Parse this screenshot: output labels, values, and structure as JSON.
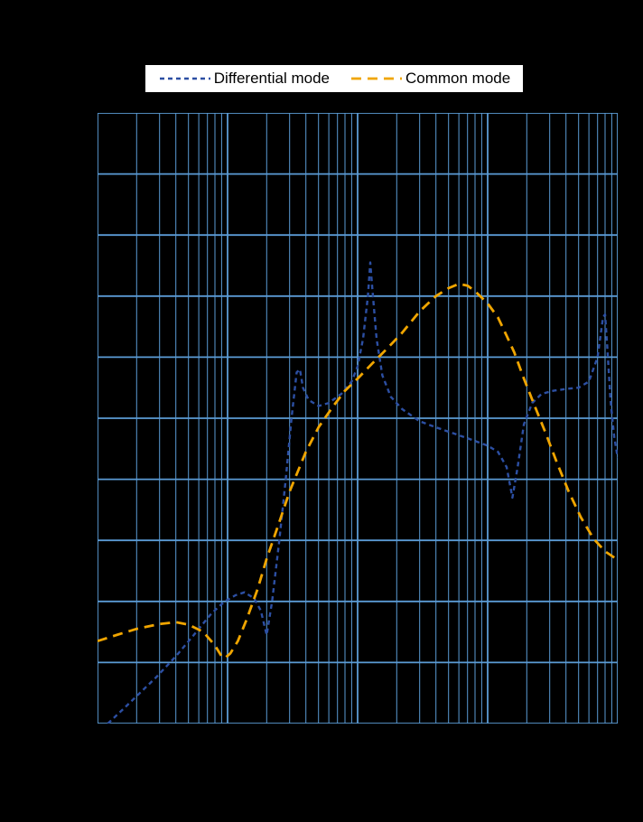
{
  "legend": {
    "background_color": "#ffffff",
    "text_color": "#000000",
    "items": [
      {
        "label": "Differential mode",
        "color": "#2c4fa3",
        "dash": "5 4"
      },
      {
        "label": "Common mode",
        "color": "#f0a500",
        "dash": "11 7"
      }
    ]
  },
  "chart_data": {
    "type": "line",
    "title": "",
    "xlabel": "",
    "ylabel": "",
    "x_scale": "log",
    "xlim": [
      0.01,
      100
    ],
    "ylim": [
      0,
      100
    ],
    "ytick": 10,
    "grid": true,
    "grid_color": "#5b9bd5",
    "background_color": "#000000",
    "legend_position": "top",
    "series": [
      {
        "name": "Differential mode",
        "color": "#2c4fa3",
        "dash": "5 4",
        "points": [
          [
            0.012,
            0
          ],
          [
            0.016,
            2.5
          ],
          [
            0.02,
            4.5
          ],
          [
            0.028,
            7.5
          ],
          [
            0.04,
            11
          ],
          [
            0.055,
            14.5
          ],
          [
            0.075,
            18
          ],
          [
            0.095,
            20
          ],
          [
            0.115,
            21
          ],
          [
            0.135,
            21.5
          ],
          [
            0.16,
            20.5
          ],
          [
            0.18,
            18.5
          ],
          [
            0.2,
            14.5
          ],
          [
            0.22,
            20
          ],
          [
            0.25,
            30
          ],
          [
            0.28,
            40
          ],
          [
            0.31,
            50
          ],
          [
            0.34,
            57.5
          ],
          [
            0.36,
            58
          ],
          [
            0.38,
            55
          ],
          [
            0.42,
            53
          ],
          [
            0.5,
            52
          ],
          [
            0.6,
            52.5
          ],
          [
            0.75,
            54
          ],
          [
            0.9,
            56
          ],
          [
            1.0,
            58.5
          ],
          [
            1.1,
            63
          ],
          [
            1.2,
            70
          ],
          [
            1.25,
            75.5
          ],
          [
            1.3,
            71
          ],
          [
            1.4,
            63
          ],
          [
            1.55,
            57
          ],
          [
            1.8,
            53.5
          ],
          [
            2.2,
            51.5
          ],
          [
            3,
            49.5
          ],
          [
            4,
            48.5
          ],
          [
            5.5,
            47.5
          ],
          [
            7.5,
            46.5
          ],
          [
            10,
            45.5
          ],
          [
            12,
            44.5
          ],
          [
            14,
            42
          ],
          [
            15.5,
            37
          ],
          [
            17,
            42
          ],
          [
            19,
            49
          ],
          [
            22,
            52.5
          ],
          [
            26,
            54
          ],
          [
            32,
            54.5
          ],
          [
            40,
            54.8
          ],
          [
            50,
            55
          ],
          [
            60,
            56
          ],
          [
            70,
            60
          ],
          [
            77,
            66.5
          ],
          [
            80,
            67
          ],
          [
            83,
            62
          ],
          [
            88,
            53
          ],
          [
            94,
            47
          ],
          [
            100,
            43.5
          ]
        ]
      },
      {
        "name": "Common mode",
        "color": "#f0a500",
        "dash": "11 7",
        "points": [
          [
            0.01,
            13.5
          ],
          [
            0.014,
            14.5
          ],
          [
            0.02,
            15.5
          ],
          [
            0.03,
            16.3
          ],
          [
            0.04,
            16.6
          ],
          [
            0.05,
            16.2
          ],
          [
            0.065,
            15
          ],
          [
            0.08,
            12.8
          ],
          [
            0.09,
            11
          ],
          [
            0.095,
            10.7
          ],
          [
            0.105,
            11.5
          ],
          [
            0.12,
            13.5
          ],
          [
            0.14,
            17
          ],
          [
            0.17,
            22
          ],
          [
            0.2,
            27
          ],
          [
            0.25,
            33
          ],
          [
            0.3,
            38
          ],
          [
            0.4,
            44.5
          ],
          [
            0.5,
            48.5
          ],
          [
            0.65,
            52
          ],
          [
            0.8,
            54.5
          ],
          [
            1,
            56.5
          ],
          [
            1.3,
            59
          ],
          [
            1.7,
            61.5
          ],
          [
            2.2,
            64
          ],
          [
            3,
            67.5
          ],
          [
            4,
            70
          ],
          [
            5,
            71.3
          ],
          [
            6,
            72
          ],
          [
            7,
            71.7
          ],
          [
            8,
            70.8
          ],
          [
            10,
            68.8
          ],
          [
            12,
            66.5
          ],
          [
            14,
            63.5
          ],
          [
            16,
            60.8
          ],
          [
            19,
            56.5
          ],
          [
            23,
            52
          ],
          [
            28,
            47.5
          ],
          [
            34,
            42.8
          ],
          [
            42,
            38
          ],
          [
            52,
            33.8
          ],
          [
            65,
            30.3
          ],
          [
            80,
            28.2
          ],
          [
            100,
            26.8
          ]
        ]
      }
    ]
  }
}
